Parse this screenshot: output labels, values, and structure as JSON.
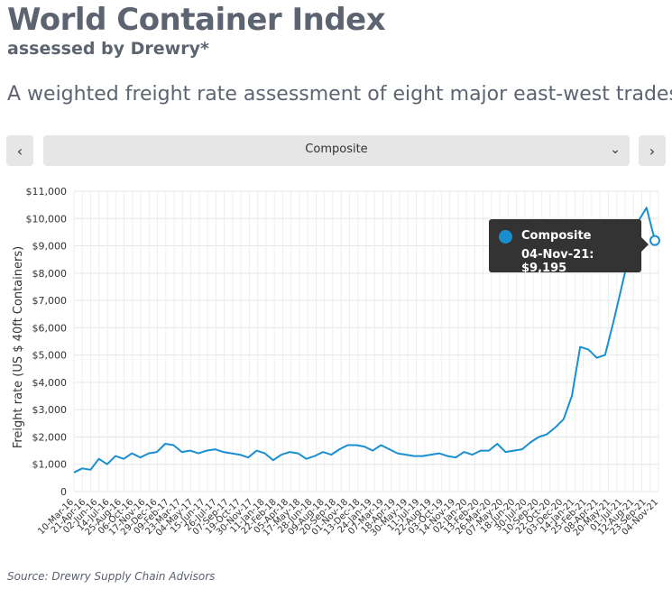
{
  "header": {
    "title": "World Container Index",
    "subtitle": "assessed by Drewry*",
    "description": "A weighted freight rate assessment of eight major east-west trades"
  },
  "controls": {
    "prev_icon": "‹",
    "next_icon": "›",
    "selected": "Composite",
    "chevron": "⌄"
  },
  "tooltip": {
    "series": "Composite",
    "text": "04-Nov-21: $9,195"
  },
  "source": "Source: Drewry Supply Chain Advisors",
  "colors": {
    "line": "#1a8fd0",
    "grid": "#e6e6e6",
    "tooltip_bg": "#333333"
  },
  "chart_data": {
    "type": "line",
    "ylabel": "Freight rate (US $ 40ft Containers)",
    "ylim": [
      0,
      11000
    ],
    "yticks": [
      0,
      1000,
      2000,
      3000,
      4000,
      5000,
      6000,
      7000,
      8000,
      9000,
      10000,
      11000
    ],
    "ytick_labels": [
      "0",
      "$1,000",
      "$2,000",
      "$3,000",
      "$4,000",
      "$5,000",
      "$6,000",
      "$7,000",
      "$8,000",
      "$9,000",
      "$10,000",
      "$11,000"
    ],
    "xtick_labels": [
      "10-Mar-16",
      "21-Apr-16",
      "02-Jun-16",
      "14-Jul-16",
      "25-Aug-16",
      "06-Oct-16",
      "17-Nov-16",
      "29-Dec-16",
      "09-Feb-17",
      "23-Mar-17",
      "04-May-17",
      "15-Jun-17",
      "26-Jul-17",
      "07-Sep-17",
      "19-Oct-17",
      "30-Nov-17",
      "11-Jan-18",
      "22-Feb-18",
      "05-Apr-18",
      "17-May-18",
      "28-Jun-18",
      "09-Aug-18",
      "20-Sep-18",
      "01-Nov-18",
      "13-Dec-18",
      "24-Jan-19",
      "07-Mar-19",
      "18-Apr-19",
      "30-May-19",
      "11-Jul-19",
      "22-Aug-19",
      "03-Oct-19",
      "14-Nov-19",
      "02-Jan-20",
      "13-Feb-20",
      "26-Mar-20",
      "07-May-20",
      "18-Jun-20",
      "30-Jul-20",
      "10-Sep-20",
      "22-Oct-20",
      "03-Dec-20",
      "14-Jan-21",
      "25-Feb-21",
      "08-Apr-21",
      "20-May-21",
      "01-Jul-21",
      "12-Aug-21",
      "23-Sep-21",
      "04-Nov-21"
    ],
    "series": [
      {
        "name": "Composite",
        "values": [
          700,
          850,
          800,
          1200,
          1000,
          1300,
          1200,
          1400,
          1250,
          1400,
          1450,
          1750,
          1700,
          1450,
          1500,
          1400,
          1500,
          1550,
          1450,
          1400,
          1350,
          1250,
          1500,
          1400,
          1150,
          1350,
          1450,
          1400,
          1200,
          1300,
          1450,
          1350,
          1550,
          1700,
          1700,
          1650,
          1500,
          1700,
          1550,
          1400,
          1350,
          1300,
          1300,
          1350,
          1400,
          1300,
          1250,
          1450,
          1350,
          1500,
          1500,
          1750,
          1450,
          1500,
          1550,
          1800,
          2000,
          2100,
          2350,
          2650,
          3500,
          5300,
          5200,
          4900,
          5000,
          6200,
          7500,
          8800,
          9900,
          10400,
          9200
        ],
        "highlight": {
          "label": "04-Nov-21",
          "value": 9195
        }
      }
    ]
  }
}
